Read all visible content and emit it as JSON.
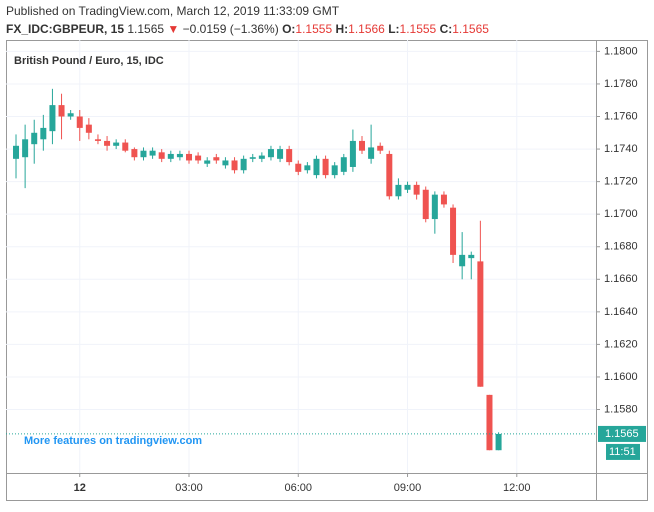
{
  "header": {
    "published": "Published on TradingView.com, March 12, 2019 11:33:09 GMT",
    "symbol": "FX_IDC:GBPEUR, 15",
    "last": 1.1565,
    "arrow": "▼",
    "change": "−0.0159 (−1.36%)",
    "o_label": "O:",
    "o": 1.1555,
    "h_label": "H:",
    "h": 1.1566,
    "l_label": "L:",
    "l": 1.1555,
    "c_label": "C:",
    "c": 1.1565
  },
  "chart_data": {
    "type": "candlestick",
    "legend": "British Pound / Euro, 15, IDC",
    "watermark": "More features on tradingview.com",
    "up_color": "#26a69a",
    "down_color": "#ef5350",
    "open": [
      1.1734,
      1.1735,
      1.1743,
      1.1746,
      1.1751,
      1.1767,
      1.176,
      1.176,
      1.1755,
      1.1746,
      1.1745,
      1.1742,
      1.1744,
      1.174,
      1.1735,
      1.1736,
      1.1738,
      1.1734,
      1.1735,
      1.1737,
      1.1736,
      1.1731,
      1.1735,
      1.173,
      1.1733,
      1.1727,
      1.1734,
      1.1734,
      1.1735,
      1.1734,
      1.174,
      1.1731,
      1.1727,
      1.1724,
      1.1734,
      1.1724,
      1.1726,
      1.1729,
      1.1745,
      1.1734,
      1.1742,
      1.1737,
      1.1711,
      1.1715,
      1.1718,
      1.1715,
      1.1697,
      1.1712,
      1.1704,
      1.1668,
      1.1673,
      1.1671,
      1.1589,
      1.1555
    ],
    "high": [
      1.1749,
      1.1755,
      1.1758,
      1.1761,
      1.1777,
      1.1774,
      1.1764,
      1.1764,
      1.1759,
      1.1749,
      1.1748,
      1.1746,
      1.1746,
      1.1741,
      1.1741,
      1.1741,
      1.174,
      1.1739,
      1.1739,
      1.1739,
      1.1738,
      1.1735,
      1.1737,
      1.1735,
      1.1735,
      1.1736,
      1.1737,
      1.1738,
      1.1742,
      1.1742,
      1.1742,
      1.1733,
      1.1732,
      1.1736,
      1.1736,
      1.1732,
      1.1737,
      1.1752,
      1.1748,
      1.1755,
      1.1744,
      1.1739,
      1.1722,
      1.172,
      1.172,
      1.1717,
      1.1714,
      1.1714,
      1.1706,
      1.1689,
      1.1677,
      1.1696,
      1.1589,
      1.1566
    ],
    "low": [
      1.1722,
      1.1716,
      1.1731,
      1.1739,
      1.1743,
      1.1746,
      1.1758,
      1.1745,
      1.1746,
      1.1743,
      1.1739,
      1.174,
      1.1738,
      1.1733,
      1.1733,
      1.1734,
      1.1732,
      1.1732,
      1.1733,
      1.1731,
      1.1731,
      1.1729,
      1.1731,
      1.1728,
      1.1725,
      1.1725,
      1.1732,
      1.1732,
      1.1733,
      1.1732,
      1.173,
      1.1724,
      1.1725,
      1.1722,
      1.1722,
      1.1722,
      1.1724,
      1.1726,
      1.1737,
      1.1731,
      1.1737,
      1.1709,
      1.1709,
      1.1713,
      1.1709,
      1.1695,
      1.1688,
      1.1704,
      1.167,
      1.166,
      1.166,
      1.1594,
      1.1555,
      1.1555
    ],
    "close": [
      1.1742,
      1.1746,
      1.175,
      1.1753,
      1.1767,
      1.176,
      1.1762,
      1.1753,
      1.175,
      1.1745,
      1.1742,
      1.1744,
      1.1739,
      1.1735,
      1.1739,
      1.1739,
      1.1734,
      1.1737,
      1.1737,
      1.1733,
      1.1733,
      1.1733,
      1.1733,
      1.1733,
      1.1727,
      1.1734,
      1.1735,
      1.1736,
      1.174,
      1.174,
      1.1732,
      1.1726,
      1.173,
      1.1734,
      1.1724,
      1.173,
      1.1735,
      1.1745,
      1.1739,
      1.1741,
      1.1739,
      1.1711,
      1.1718,
      1.1718,
      1.1712,
      1.1697,
      1.1712,
      1.1706,
      1.1675,
      1.1675,
      1.1675,
      1.1594,
      1.1555,
      1.1565
    ],
    "xlim": [
      -1.1,
      63.7
    ],
    "xticks": [
      {
        "value": 7,
        "label": "12"
      },
      {
        "value": 19,
        "label": "03:00"
      },
      {
        "value": 31,
        "label": "06:00"
      },
      {
        "value": 43,
        "label": "09:00"
      },
      {
        "value": 55,
        "label": "12:00"
      }
    ],
    "ylim": [
      1.1541,
      1.1807
    ],
    "yticks": [
      {
        "value": 1.158,
        "label": "1.1580"
      },
      {
        "value": 1.16,
        "label": "1.1600"
      },
      {
        "value": 1.162,
        "label": "1.1620"
      },
      {
        "value": 1.164,
        "label": "1.1640"
      },
      {
        "value": 1.166,
        "label": "1.1660"
      },
      {
        "value": 1.168,
        "label": "1.1680"
      },
      {
        "value": 1.17,
        "label": "1.1700"
      },
      {
        "value": 1.172,
        "label": "1.1720"
      },
      {
        "value": 1.174,
        "label": "1.1740"
      },
      {
        "value": 1.176,
        "label": "1.1760"
      },
      {
        "value": 1.178,
        "label": "1.1780"
      },
      {
        "value": 1.18,
        "label": "1.1800"
      }
    ],
    "price_label": 1.1565,
    "time_label": "11:51"
  }
}
